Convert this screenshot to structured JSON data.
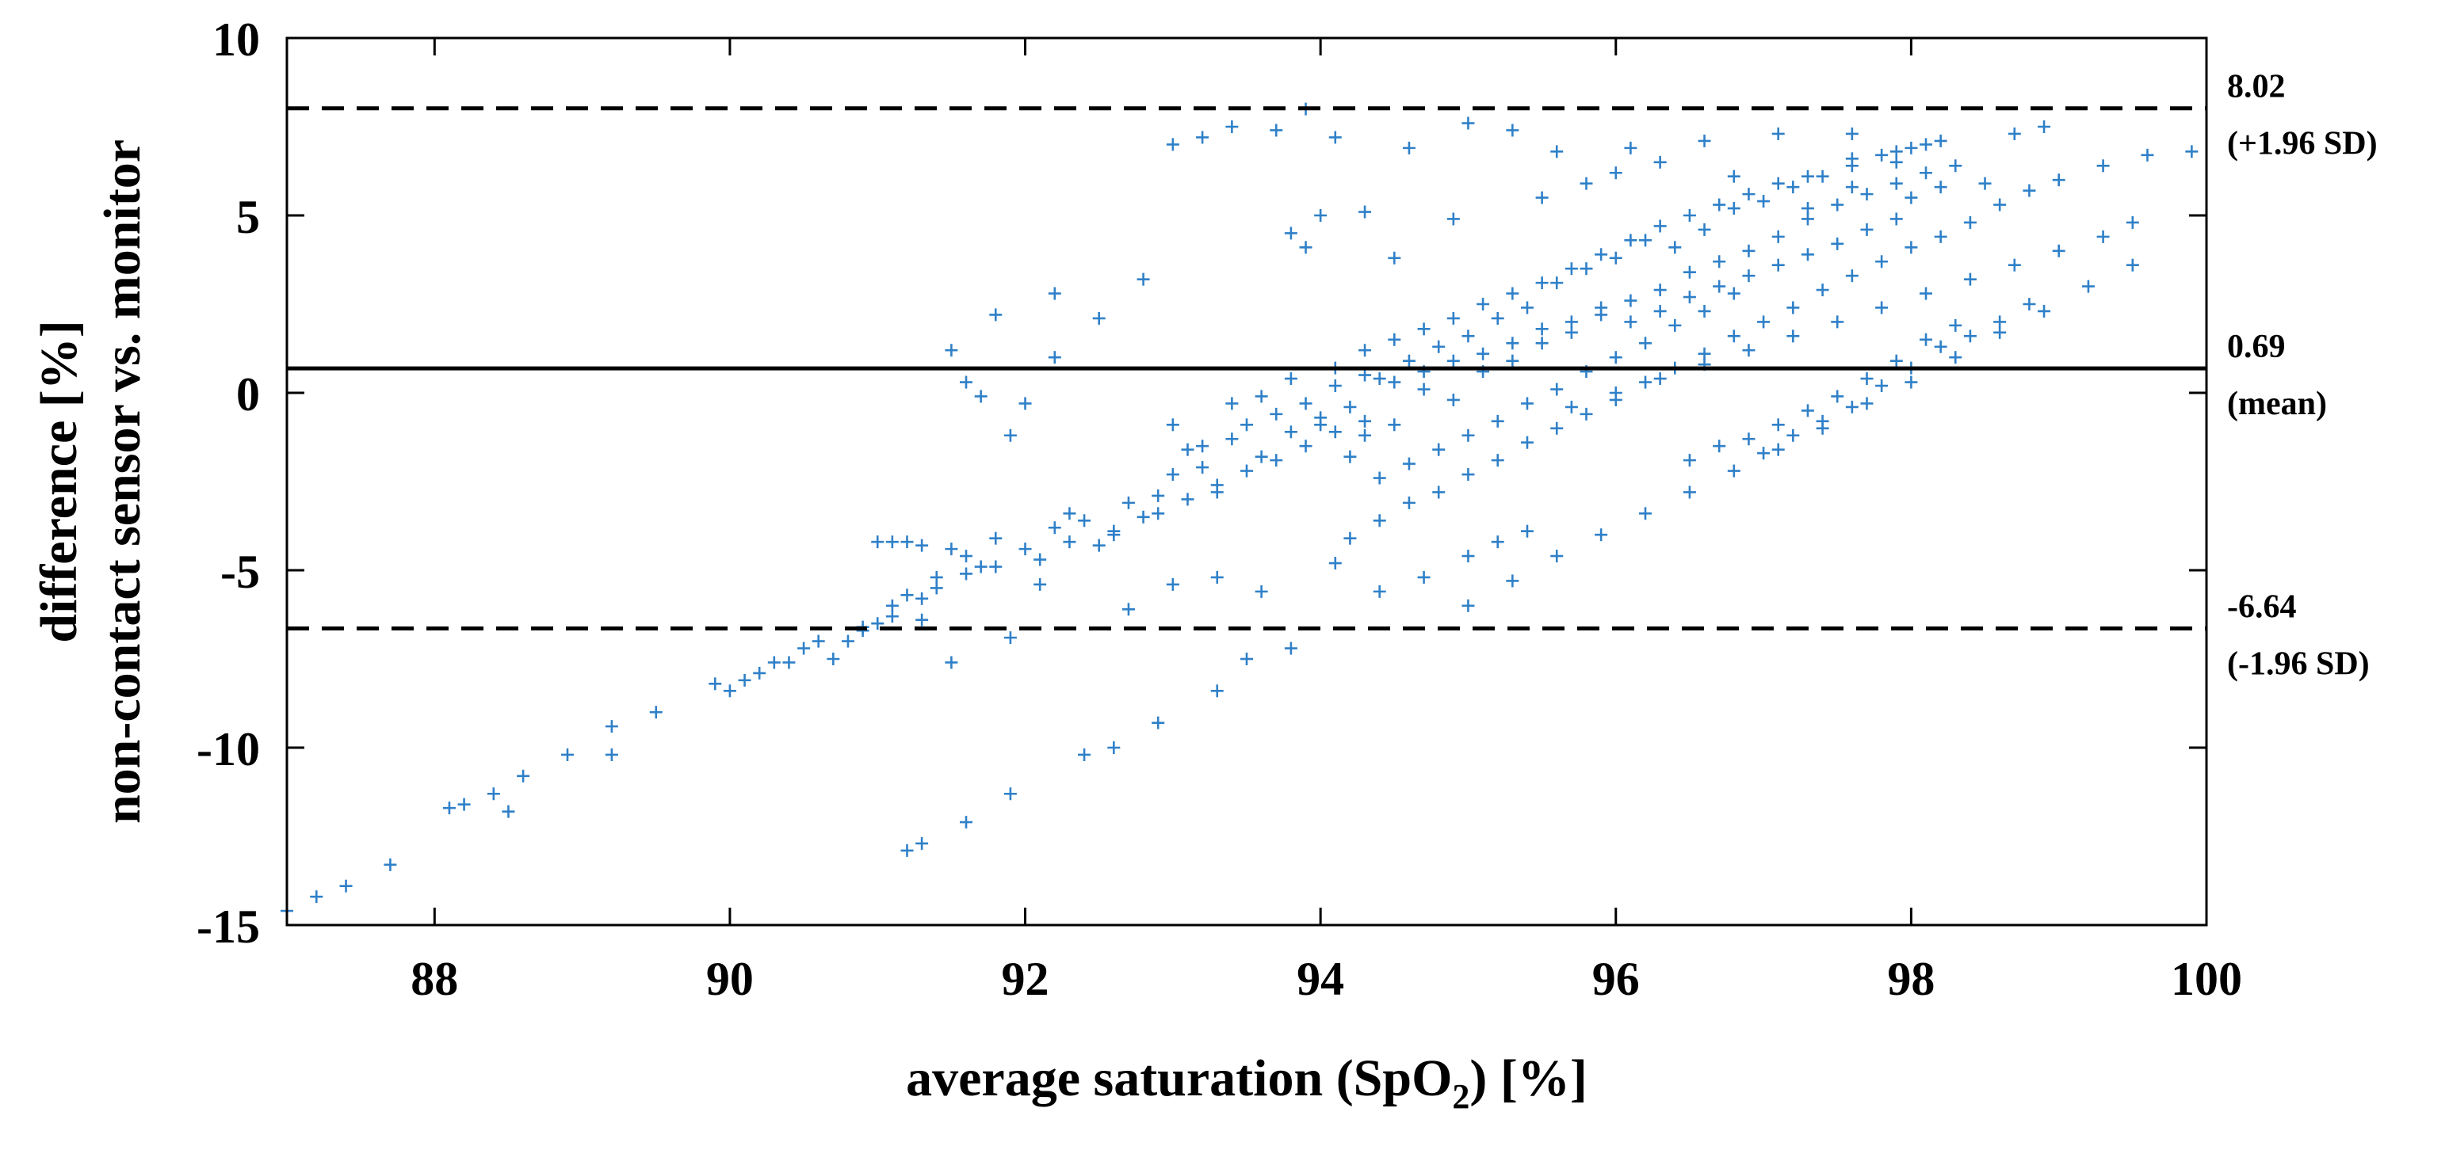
{
  "chart_data": {
    "type": "scatter",
    "title": "",
    "xlabel": "average saturation (SpO",
    "xlabel_subscript": "2",
    "xlabel_suffix": ") [%]",
    "ylabel_line1": "difference [%]",
    "ylabel_line2": "non-contact sensor vs. monitor",
    "xlim": [
      87,
      100
    ],
    "ylim": [
      -15,
      10
    ],
    "xticks": [
      88,
      90,
      92,
      94,
      96,
      98,
      100
    ],
    "yticks": [
      -15,
      -10,
      -5,
      0,
      5,
      10
    ],
    "grid": false,
    "marker": "+",
    "point_color": "#2f80c8",
    "reference_lines": [
      {
        "name": "mean",
        "y": 0.69,
        "style": "solid",
        "value_label": "0.69",
        "desc_label": "(mean)"
      },
      {
        "name": "upper",
        "y": 8.02,
        "style": "dashed",
        "value_label": "8.02",
        "desc_label": "(+1.96 SD)"
      },
      {
        "name": "lower",
        "y": -6.64,
        "style": "dashed",
        "value_label": "-6.64",
        "desc_label": "(-1.96 SD)"
      }
    ],
    "points": [
      [
        87.0,
        -14.6
      ],
      [
        87.2,
        -14.2
      ],
      [
        87.4,
        -13.9
      ],
      [
        87.7,
        -13.3
      ],
      [
        88.1,
        -11.7
      ],
      [
        88.2,
        -11.6
      ],
      [
        88.4,
        -11.3
      ],
      [
        88.5,
        -11.8
      ],
      [
        88.6,
        -10.8
      ],
      [
        88.9,
        -10.2
      ],
      [
        89.2,
        -10.2
      ],
      [
        89.2,
        -9.4
      ],
      [
        89.5,
        -9.0
      ],
      [
        89.9,
        -8.2
      ],
      [
        90.0,
        -8.4
      ],
      [
        90.1,
        -8.1
      ],
      [
        90.3,
        -7.6
      ],
      [
        90.5,
        -7.2
      ],
      [
        90.7,
        -7.5
      ],
      [
        90.8,
        -7.0
      ],
      [
        90.9,
        -6.7
      ],
      [
        91.0,
        -6.5
      ],
      [
        91.1,
        -6.0
      ],
      [
        91.2,
        -5.7
      ],
      [
        91.3,
        -6.4
      ],
      [
        91.4,
        -5.2
      ],
      [
        91.5,
        -4.4
      ],
      [
        91.0,
        -4.2
      ],
      [
        91.1,
        -4.2
      ],
      [
        91.2,
        -4.2
      ],
      [
        91.3,
        -4.3
      ],
      [
        91.5,
        -7.6
      ],
      [
        91.6,
        -4.6
      ],
      [
        91.7,
        -4.9
      ],
      [
        91.8,
        -4.1
      ],
      [
        91.9,
        -6.9
      ],
      [
        92.0,
        -4.4
      ],
      [
        92.1,
        -5.4
      ],
      [
        92.2,
        -3.8
      ],
      [
        92.3,
        -3.4
      ],
      [
        92.4,
        -3.6
      ],
      [
        92.5,
        -4.3
      ],
      [
        92.6,
        -4.0
      ],
      [
        92.7,
        -3.1
      ],
      [
        92.8,
        -3.5
      ],
      [
        92.9,
        -2.9
      ],
      [
        93.0,
        -2.3
      ],
      [
        93.1,
        -1.6
      ],
      [
        93.2,
        -2.1
      ],
      [
        93.3,
        -2.8
      ],
      [
        93.4,
        -1.3
      ],
      [
        93.5,
        -0.9
      ],
      [
        93.6,
        -1.8
      ],
      [
        93.7,
        -0.6
      ],
      [
        93.8,
        -1.1
      ],
      [
        93.9,
        -0.3
      ],
      [
        94.0,
        -0.7
      ],
      [
        94.1,
        0.2
      ],
      [
        94.2,
        -0.4
      ],
      [
        94.3,
        -1.2
      ],
      [
        94.4,
        0.4
      ],
      [
        94.5,
        -0.9
      ],
      [
        94.6,
        0.9
      ],
      [
        94.7,
        0.1
      ],
      [
        94.8,
        1.3
      ],
      [
        94.9,
        -0.2
      ],
      [
        95.0,
        1.6
      ],
      [
        95.1,
        0.6
      ],
      [
        95.2,
        2.1
      ],
      [
        95.3,
        0.9
      ],
      [
        95.4,
        2.4
      ],
      [
        95.5,
        1.4
      ],
      [
        95.6,
        3.1
      ],
      [
        95.7,
        1.7
      ],
      [
        95.8,
        3.5
      ],
      [
        95.9,
        2.2
      ],
      [
        96.0,
        3.8
      ],
      [
        96.1,
        2.6
      ],
      [
        96.2,
        4.3
      ],
      [
        96.3,
        2.9
      ],
      [
        96.4,
        4.1
      ],
      [
        96.5,
        3.4
      ],
      [
        96.6,
        4.6
      ],
      [
        96.7,
        3.7
      ],
      [
        96.8,
        5.2
      ],
      [
        96.9,
        4.0
      ],
      [
        97.0,
        5.4
      ],
      [
        97.1,
        4.4
      ],
      [
        97.2,
        5.8
      ],
      [
        97.3,
        4.9
      ],
      [
        97.4,
        6.1
      ],
      [
        97.5,
        5.3
      ],
      [
        97.6,
        6.4
      ],
      [
        97.7,
        5.6
      ],
      [
        97.8,
        6.7
      ],
      [
        97.9,
        5.9
      ],
      [
        98.0,
        6.9
      ],
      [
        98.1,
        6.2
      ],
      [
        98.2,
        5.8
      ],
      [
        98.3,
        6.4
      ],
      [
        94.2,
        -4.1
      ],
      [
        94.4,
        -3.6
      ],
      [
        94.6,
        -3.1
      ],
      [
        94.8,
        -2.8
      ],
      [
        95.0,
        -2.3
      ],
      [
        95.2,
        -1.9
      ],
      [
        95.4,
        -1.4
      ],
      [
        95.6,
        -1.0
      ],
      [
        95.8,
        -0.6
      ],
      [
        96.0,
        -0.2
      ],
      [
        96.2,
        0.3
      ],
      [
        96.4,
        0.7
      ],
      [
        96.6,
        1.1
      ],
      [
        96.8,
        1.6
      ],
      [
        97.0,
        2.0
      ],
      [
        97.2,
        2.4
      ],
      [
        97.4,
        2.9
      ],
      [
        97.6,
        3.3
      ],
      [
        97.8,
        3.7
      ],
      [
        98.0,
        4.1
      ],
      [
        98.2,
        4.4
      ],
      [
        98.4,
        4.8
      ],
      [
        98.6,
        5.3
      ],
      [
        98.8,
        5.7
      ],
      [
        99.0,
        6.0
      ],
      [
        99.3,
        6.4
      ],
      [
        99.6,
        6.7
      ],
      [
        99.9,
        6.8
      ],
      [
        98.9,
        7.5
      ],
      [
        98.7,
        7.3
      ],
      [
        95.0,
        -6.0
      ],
      [
        95.3,
        -5.3
      ],
      [
        95.6,
        -4.6
      ],
      [
        95.9,
        -4.0
      ],
      [
        96.2,
        -3.4
      ],
      [
        96.5,
        -2.8
      ],
      [
        96.8,
        -2.2
      ],
      [
        97.1,
        -1.6
      ],
      [
        97.4,
        -1.0
      ],
      [
        97.7,
        -0.3
      ],
      [
        98.0,
        0.3
      ],
      [
        98.3,
        1.0
      ],
      [
        98.6,
        1.7
      ],
      [
        98.9,
        2.3
      ],
      [
        99.2,
        3.0
      ],
      [
        99.5,
        3.6
      ],
      [
        99.5,
        4.8
      ],
      [
        99.3,
        4.4
      ],
      [
        99.0,
        4.0
      ],
      [
        98.7,
        3.6
      ],
      [
        98.4,
        3.2
      ],
      [
        98.1,
        2.8
      ],
      [
        97.8,
        2.4
      ],
      [
        97.5,
        2.0
      ],
      [
        97.2,
        1.6
      ],
      [
        96.9,
        1.2
      ],
      [
        96.6,
        0.8
      ],
      [
        96.3,
        0.4
      ],
      [
        96.0,
        0.0
      ],
      [
        95.7,
        -0.4
      ],
      [
        93.0,
        7.0
      ],
      [
        93.2,
        7.2
      ],
      [
        93.4,
        7.5
      ],
      [
        93.7,
        7.4
      ],
      [
        93.9,
        8.0
      ],
      [
        94.1,
        7.2
      ],
      [
        94.6,
        6.9
      ],
      [
        95.0,
        7.6
      ],
      [
        95.3,
        7.4
      ],
      [
        95.6,
        6.8
      ],
      [
        96.1,
        6.9
      ],
      [
        96.6,
        7.1
      ],
      [
        97.1,
        7.3
      ],
      [
        97.6,
        7.3
      ],
      [
        93.8,
        4.5
      ],
      [
        93.9,
        4.1
      ],
      [
        94.0,
        5.0
      ],
      [
        94.3,
        5.1
      ],
      [
        94.5,
        3.8
      ],
      [
        94.9,
        4.9
      ],
      [
        91.5,
        1.2
      ],
      [
        91.6,
        0.3
      ],
      [
        91.7,
        -0.1
      ],
      [
        91.8,
        2.2
      ],
      [
        92.0,
        -0.3
      ],
      [
        92.2,
        2.8
      ],
      [
        92.2,
        1.0
      ],
      [
        92.5,
        2.1
      ],
      [
        92.8,
        3.2
      ],
      [
        91.9,
        -1.2
      ],
      [
        91.2,
        -12.9
      ],
      [
        91.3,
        -12.7
      ],
      [
        91.6,
        -12.1
      ],
      [
        91.9,
        -11.3
      ],
      [
        92.4,
        -10.2
      ],
      [
        92.6,
        -10.0
      ],
      [
        92.9,
        -9.3
      ],
      [
        93.3,
        -8.4
      ],
      [
        93.5,
        -7.5
      ],
      [
        93.8,
        -7.2
      ],
      [
        92.7,
        -6.1
      ],
      [
        93.0,
        -5.4
      ],
      [
        93.3,
        -5.2
      ],
      [
        93.6,
        -5.6
      ],
      [
        94.1,
        -4.8
      ],
      [
        94.4,
        -5.6
      ],
      [
        94.7,
        -5.2
      ],
      [
        95.0,
        -4.6
      ],
      [
        95.2,
        -4.2
      ],
      [
        95.4,
        -3.9
      ],
      [
        93.0,
        -0.9
      ],
      [
        93.2,
        -1.5
      ],
      [
        93.4,
        -0.3
      ],
      [
        93.6,
        -0.1
      ],
      [
        93.8,
        0.4
      ],
      [
        94.0,
        -0.9
      ],
      [
        94.2,
        -1.8
      ],
      [
        94.4,
        -2.4
      ],
      [
        94.6,
        -2.0
      ],
      [
        94.8,
        -1.6
      ],
      [
        95.0,
        -1.2
      ],
      [
        95.2,
        -0.8
      ],
      [
        95.4,
        -0.3
      ],
      [
        95.6,
        0.1
      ],
      [
        95.8,
        0.6
      ],
      [
        96.0,
        1.0
      ],
      [
        96.2,
        1.4
      ],
      [
        96.4,
        1.9
      ],
      [
        96.6,
        2.3
      ],
      [
        96.8,
        2.8
      ],
      [
        94.3,
        1.2
      ],
      [
        94.5,
        1.5
      ],
      [
        94.7,
        1.8
      ],
      [
        94.9,
        2.1
      ],
      [
        95.1,
        2.5
      ],
      [
        95.3,
        2.8
      ],
      [
        95.5,
        3.1
      ],
      [
        95.7,
        3.5
      ],
      [
        95.9,
        3.9
      ],
      [
        96.1,
        4.3
      ],
      [
        96.3,
        4.7
      ],
      [
        96.5,
        5.0
      ],
      [
        96.7,
        5.3
      ],
      [
        96.9,
        5.6
      ],
      [
        97.1,
        5.9
      ],
      [
        97.3,
        6.1
      ],
      [
        97.6,
        6.6
      ],
      [
        97.9,
        6.5
      ],
      [
        98.1,
        7.0
      ],
      [
        98.2,
        7.1
      ],
      [
        94.1,
        0.7
      ],
      [
        94.3,
        0.5
      ],
      [
        94.5,
        0.3
      ],
      [
        94.7,
        0.6
      ],
      [
        94.9,
        0.9
      ],
      [
        95.1,
        1.1
      ],
      [
        95.3,
        1.4
      ],
      [
        95.5,
        1.8
      ],
      [
        95.7,
        2.0
      ],
      [
        95.9,
        2.4
      ],
      [
        96.1,
        2.0
      ],
      [
        96.3,
        2.3
      ],
      [
        96.5,
        2.7
      ],
      [
        96.7,
        3.0
      ],
      [
        96.9,
        3.3
      ],
      [
        97.1,
        3.6
      ],
      [
        97.3,
        3.9
      ],
      [
        97.5,
        4.2
      ],
      [
        97.7,
        4.6
      ],
      [
        97.9,
        4.9
      ],
      [
        90.2,
        -7.9
      ],
      [
        90.4,
        -7.6
      ],
      [
        90.6,
        -7.0
      ],
      [
        90.9,
        -6.6
      ],
      [
        91.1,
        -6.3
      ],
      [
        91.3,
        -5.8
      ],
      [
        91.4,
        -5.5
      ],
      [
        91.6,
        -5.1
      ],
      [
        91.8,
        -4.9
      ],
      [
        92.1,
        -4.7
      ],
      [
        92.3,
        -4.2
      ],
      [
        92.6,
        -3.9
      ],
      [
        92.9,
        -3.4
      ],
      [
        93.1,
        -3.0
      ],
      [
        93.3,
        -2.6
      ],
      [
        93.5,
        -2.2
      ],
      [
        93.7,
        -1.9
      ],
      [
        93.9,
        -1.5
      ],
      [
        94.1,
        -1.1
      ],
      [
        94.3,
        -0.8
      ],
      [
        97.0,
        -1.7
      ],
      [
        97.2,
        -1.2
      ],
      [
        97.4,
        -0.8
      ],
      [
        97.6,
        -0.4
      ],
      [
        97.8,
        0.2
      ],
      [
        98.0,
        0.7
      ],
      [
        98.2,
        1.3
      ],
      [
        98.4,
        1.6
      ],
      [
        98.6,
        2.0
      ],
      [
        98.8,
        2.5
      ],
      [
        96.5,
        -1.9
      ],
      [
        96.7,
        -1.5
      ],
      [
        96.9,
        -1.3
      ],
      [
        97.1,
        -0.9
      ],
      [
        97.3,
        -0.5
      ],
      [
        97.5,
        -0.1
      ],
      [
        97.7,
        0.4
      ],
      [
        97.9,
        0.9
      ],
      [
        98.1,
        1.5
      ],
      [
        98.3,
        1.9
      ],
      [
        95.5,
        5.5
      ],
      [
        95.8,
        5.9
      ],
      [
        96.0,
        6.2
      ],
      [
        96.3,
        6.5
      ],
      [
        96.8,
        6.1
      ],
      [
        97.3,
        5.2
      ],
      [
        97.6,
        5.8
      ],
      [
        97.9,
        6.8
      ],
      [
        98.0,
        5.5
      ],
      [
        98.5,
        5.9
      ]
    ]
  }
}
